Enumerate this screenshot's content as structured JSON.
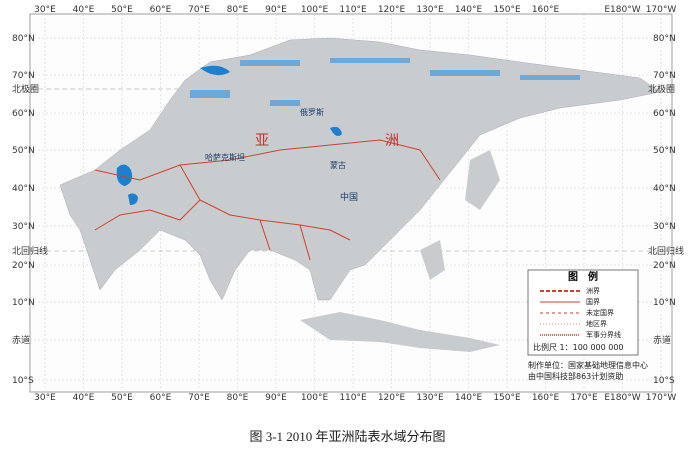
{
  "map": {
    "top_longitudes": [
      "30°E",
      "40°E",
      "50°E",
      "60°E",
      "70°E",
      "80°E",
      "90°E",
      "100°E",
      "110°E",
      "120°E",
      "130°E",
      "140°E",
      "150°E",
      "160°E",
      "E180°W",
      "170°W"
    ],
    "bottom_longitudes": [
      "30°E",
      "40°E",
      "50°E",
      "60°E",
      "70°E",
      "80°E",
      "90°E",
      "100°E",
      "110°E",
      "120°E",
      "130°E",
      "140°E",
      "150°E",
      "160°E",
      "170°E",
      "E180°W",
      "170°W"
    ],
    "latitudes": [
      "80°N",
      "70°N",
      "60°N",
      "50°N",
      "40°N",
      "30°N",
      "20°N",
      "10°N",
      "赤道",
      "10°S"
    ],
    "arctic_circle": "北极圈",
    "tropic_of_cancer": "北回归线",
    "region_labels": [
      "亚",
      "洲",
      "中国",
      "蒙古",
      "哈萨克斯坦",
      "俄罗斯"
    ],
    "legend": {
      "title": "图　例",
      "items": [
        "洲界",
        "国界",
        "未定国界",
        "地区界",
        "军事分界线"
      ],
      "scale": "比例尺 1：100 000 000"
    },
    "credits": [
      "制作单位：国家基础地理信息中心",
      "由中国科技部863计划资助"
    ]
  },
  "caption": "图 3-1  2010 年亚洲陆表水域分布图"
}
